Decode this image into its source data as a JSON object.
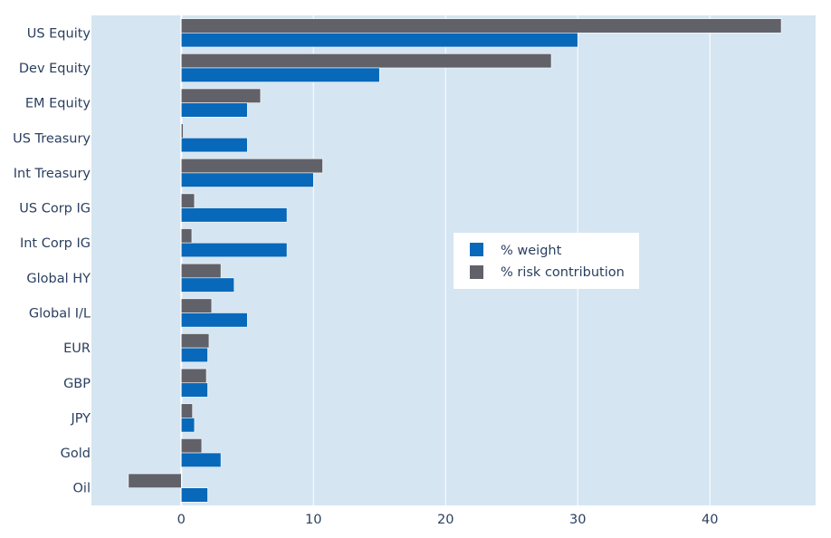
{
  "chart_data": {
    "type": "bar",
    "orientation": "horizontal",
    "categories": [
      "US Equity",
      "Dev Equity",
      "EM Equity",
      "US Treasury",
      "Int Treasury",
      "US Corp IG",
      "Int Corp IG",
      "Global HY",
      "Global I/L",
      "EUR",
      "GBP",
      "JPY",
      "Gold",
      "Oil"
    ],
    "series": [
      {
        "name": "% weight",
        "color": "#0868b9",
        "values": [
          30,
          15,
          5,
          5,
          10,
          8,
          8,
          4,
          5,
          2,
          2,
          1,
          3,
          2
        ]
      },
      {
        "name": "% risk contribution",
        "color": "#616169",
        "values": [
          45.4,
          28,
          6,
          0.15,
          10.7,
          1,
          0.8,
          3,
          2.3,
          2.1,
          1.9,
          0.85,
          1.55,
          -4
        ]
      }
    ],
    "xlim": [
      -6.8,
      48
    ],
    "x_ticks": [
      0,
      10,
      20,
      30,
      40
    ],
    "title": "",
    "xlabel": "",
    "ylabel": "",
    "grid": true,
    "legend_position": "center-right",
    "plot_background": "#d5e5f2"
  }
}
